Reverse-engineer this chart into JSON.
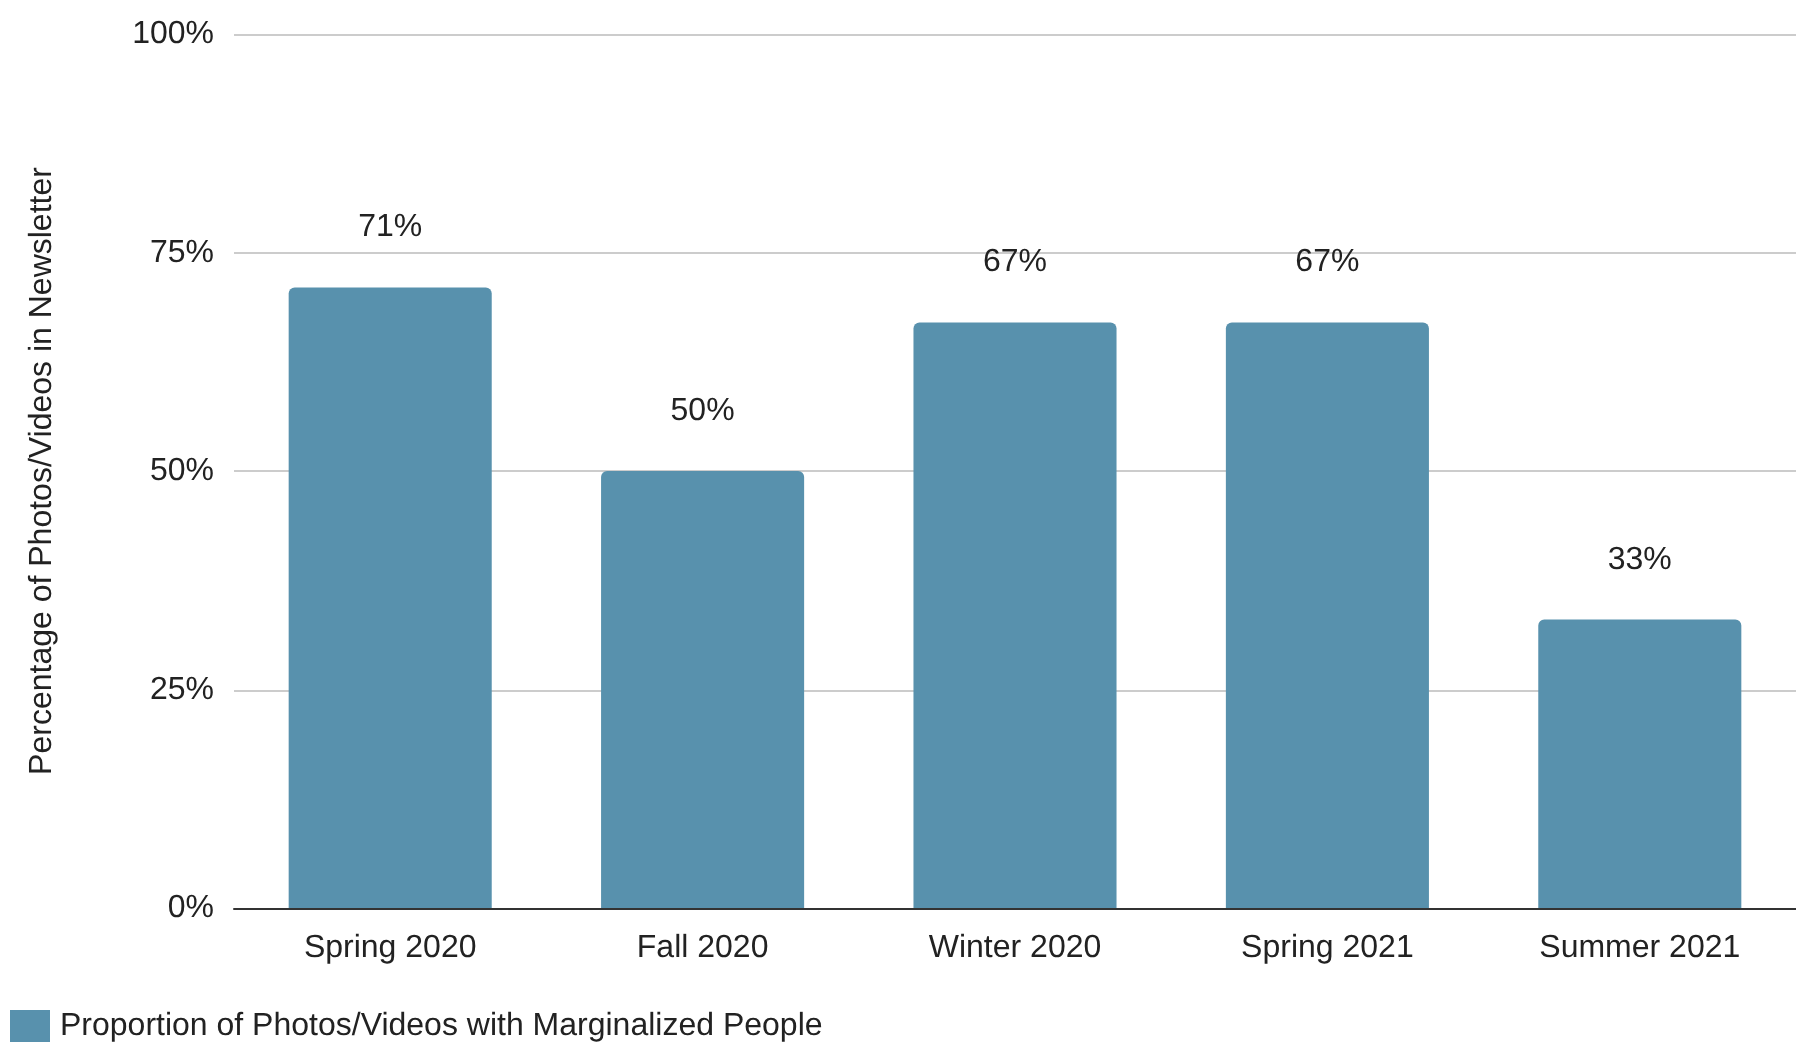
{
  "chart_data": {
    "type": "bar",
    "ylabel": "Percentage of Photos/Videos in Newsletter",
    "categories": [
      "Spring 2020",
      "Fall 2020",
      "Winter 2020",
      "Spring 2021",
      "Summer 2021"
    ],
    "series": [
      {
        "name": "Proportion of Photos/Videos with Marginalized People",
        "color": "#5891ad",
        "values": [
          71,
          50,
          67,
          67,
          33
        ],
        "value_labels": [
          "71%",
          "50%",
          "67%",
          "67%",
          "33%"
        ]
      }
    ],
    "ylim": [
      0,
      100
    ],
    "yticks": [
      {
        "value": 0,
        "label": "0%"
      },
      {
        "value": 25,
        "label": "25%"
      },
      {
        "value": 50,
        "label": "50%"
      },
      {
        "value": 75,
        "label": "75%"
      },
      {
        "value": 100,
        "label": "100%"
      }
    ],
    "grid": "y",
    "legend": "bottom left"
  }
}
